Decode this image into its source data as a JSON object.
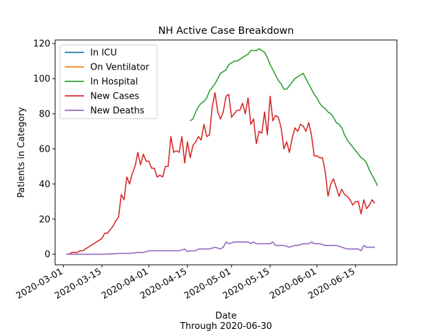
{
  "chart_data": {
    "type": "line",
    "title": "NH Active Case Breakdown",
    "xlabel": "Date",
    "xlabel_sub": "Through 2020-06-30",
    "ylabel": "Patients in Category",
    "xlim": [
      "2020-02-27",
      "2020-06-30"
    ],
    "ylim": [
      -6,
      122
    ],
    "y_ticks": [
      0,
      20,
      40,
      60,
      80,
      100,
      120
    ],
    "x_ticks": [
      "2020-03-01",
      "2020-03-15",
      "2020-04-01",
      "2020-04-15",
      "2020-05-01",
      "2020-05-15",
      "2020-06-01",
      "2020-06-15"
    ],
    "grid": false,
    "legend_position": "upper-left",
    "series": [
      {
        "name": "In ICU",
        "color": "#1f77b4",
        "points": []
      },
      {
        "name": "On Ventilator",
        "color": "#ff7f0e",
        "points": []
      },
      {
        "name": "In Hospital",
        "color": "#2ca02c",
        "points": [
          [
            "2020-04-16",
            76
          ],
          [
            "2020-04-17",
            77
          ],
          [
            "2020-04-18",
            81
          ],
          [
            "2020-04-19",
            84
          ],
          [
            "2020-04-20",
            86
          ],
          [
            "2020-04-21",
            87
          ],
          [
            "2020-04-22",
            89
          ],
          [
            "2020-04-23",
            93
          ],
          [
            "2020-04-24",
            95
          ],
          [
            "2020-04-25",
            97
          ],
          [
            "2020-04-26",
            100
          ],
          [
            "2020-04-27",
            103
          ],
          [
            "2020-04-28",
            104
          ],
          [
            "2020-04-29",
            105
          ],
          [
            "2020-04-30",
            108
          ],
          [
            "2020-05-01",
            109
          ],
          [
            "2020-05-02",
            110
          ],
          [
            "2020-05-03",
            110
          ],
          [
            "2020-05-04",
            111
          ],
          [
            "2020-05-05",
            112
          ],
          [
            "2020-05-06",
            113
          ],
          [
            "2020-05-07",
            114
          ],
          [
            "2020-05-08",
            116
          ],
          [
            "2020-05-09",
            116
          ],
          [
            "2020-05-10",
            116
          ],
          [
            "2020-05-11",
            117
          ],
          [
            "2020-05-12",
            116
          ],
          [
            "2020-05-13",
            115
          ],
          [
            "2020-05-14",
            112
          ],
          [
            "2020-05-15",
            108
          ],
          [
            "2020-05-16",
            105
          ],
          [
            "2020-05-17",
            102
          ],
          [
            "2020-05-18",
            99
          ],
          [
            "2020-05-19",
            97
          ],
          [
            "2020-05-20",
            94
          ],
          [
            "2020-05-21",
            94
          ],
          [
            "2020-05-22",
            96
          ],
          [
            "2020-05-23",
            98
          ],
          [
            "2020-05-24",
            100
          ],
          [
            "2020-05-25",
            101
          ],
          [
            "2020-05-26",
            102
          ],
          [
            "2020-05-27",
            103
          ],
          [
            "2020-05-28",
            100
          ],
          [
            "2020-05-29",
            97
          ],
          [
            "2020-05-30",
            94
          ],
          [
            "2020-05-31",
            91
          ],
          [
            "2020-06-01",
            89
          ],
          [
            "2020-06-02",
            86
          ],
          [
            "2020-06-03",
            84
          ],
          [
            "2020-06-04",
            83
          ],
          [
            "2020-06-05",
            81
          ],
          [
            "2020-06-06",
            80
          ],
          [
            "2020-06-07",
            78
          ],
          [
            "2020-06-08",
            75
          ],
          [
            "2020-06-09",
            74
          ],
          [
            "2020-06-10",
            72
          ],
          [
            "2020-06-11",
            68
          ],
          [
            "2020-06-12",
            65
          ],
          [
            "2020-06-13",
            63
          ],
          [
            "2020-06-14",
            61
          ],
          [
            "2020-06-15",
            59
          ],
          [
            "2020-06-16",
            57
          ],
          [
            "2020-06-17",
            55
          ],
          [
            "2020-06-18",
            54
          ],
          [
            "2020-06-19",
            52
          ],
          [
            "2020-06-20",
            48
          ],
          [
            "2020-06-21",
            45
          ],
          [
            "2020-06-22",
            42
          ],
          [
            "2020-06-23",
            39
          ]
        ]
      },
      {
        "name": "New Cases",
        "color": "#d62728",
        "points": [
          [
            "2020-03-02",
            0
          ],
          [
            "2020-03-03",
            0
          ],
          [
            "2020-03-04",
            1
          ],
          [
            "2020-03-05",
            1
          ],
          [
            "2020-03-06",
            1
          ],
          [
            "2020-03-07",
            2
          ],
          [
            "2020-03-08",
            2
          ],
          [
            "2020-03-09",
            3
          ],
          [
            "2020-03-10",
            4
          ],
          [
            "2020-03-11",
            5
          ],
          [
            "2020-03-12",
            6
          ],
          [
            "2020-03-13",
            7
          ],
          [
            "2020-03-14",
            8
          ],
          [
            "2020-03-15",
            9
          ],
          [
            "2020-03-16",
            12
          ],
          [
            "2020-03-17",
            12
          ],
          [
            "2020-03-18",
            14
          ],
          [
            "2020-03-19",
            16
          ],
          [
            "2020-03-20",
            19
          ],
          [
            "2020-03-21",
            21
          ],
          [
            "2020-03-22",
            34
          ],
          [
            "2020-03-23",
            31
          ],
          [
            "2020-03-24",
            44
          ],
          [
            "2020-03-25",
            40
          ],
          [
            "2020-03-26",
            46
          ],
          [
            "2020-03-27",
            50
          ],
          [
            "2020-03-28",
            58
          ],
          [
            "2020-03-29",
            51
          ],
          [
            "2020-03-30",
            57
          ],
          [
            "2020-03-31",
            53
          ],
          [
            "2020-04-01",
            53
          ],
          [
            "2020-04-02",
            49
          ],
          [
            "2020-04-03",
            49
          ],
          [
            "2020-04-04",
            44
          ],
          [
            "2020-04-05",
            45
          ],
          [
            "2020-04-06",
            44
          ],
          [
            "2020-04-07",
            50
          ],
          [
            "2020-04-08",
            50
          ],
          [
            "2020-04-09",
            67
          ],
          [
            "2020-04-10",
            58
          ],
          [
            "2020-04-11",
            59
          ],
          [
            "2020-04-12",
            58
          ],
          [
            "2020-04-13",
            67
          ],
          [
            "2020-04-14",
            52
          ],
          [
            "2020-04-15",
            64
          ],
          [
            "2020-04-16",
            55
          ],
          [
            "2020-04-17",
            62
          ],
          [
            "2020-04-18",
            64
          ],
          [
            "2020-04-19",
            67
          ],
          [
            "2020-04-20",
            65
          ],
          [
            "2020-04-21",
            74
          ],
          [
            "2020-04-22",
            67
          ],
          [
            "2020-04-23",
            68
          ],
          [
            "2020-04-24",
            84
          ],
          [
            "2020-04-25",
            92
          ],
          [
            "2020-04-26",
            81
          ],
          [
            "2020-04-27",
            77
          ],
          [
            "2020-04-28",
            81
          ],
          [
            "2020-04-29",
            90
          ],
          [
            "2020-04-30",
            91
          ],
          [
            "2020-05-01",
            78
          ],
          [
            "2020-05-02",
            80
          ],
          [
            "2020-05-03",
            82
          ],
          [
            "2020-05-04",
            82
          ],
          [
            "2020-05-05",
            86
          ],
          [
            "2020-05-06",
            80
          ],
          [
            "2020-05-07",
            89
          ],
          [
            "2020-05-08",
            74
          ],
          [
            "2020-05-09",
            77
          ],
          [
            "2020-05-10",
            63
          ],
          [
            "2020-05-11",
            70
          ],
          [
            "2020-05-12",
            69
          ],
          [
            "2020-05-13",
            81
          ],
          [
            "2020-05-14",
            68
          ],
          [
            "2020-05-15",
            90
          ],
          [
            "2020-05-16",
            76
          ],
          [
            "2020-05-17",
            79
          ],
          [
            "2020-05-18",
            78
          ],
          [
            "2020-05-19",
            72
          ],
          [
            "2020-05-20",
            60
          ],
          [
            "2020-05-21",
            64
          ],
          [
            "2020-05-22",
            58
          ],
          [
            "2020-05-23",
            66
          ],
          [
            "2020-05-24",
            72
          ],
          [
            "2020-05-25",
            70
          ],
          [
            "2020-05-26",
            74
          ],
          [
            "2020-05-27",
            73
          ],
          [
            "2020-05-28",
            70
          ],
          [
            "2020-05-29",
            75
          ],
          [
            "2020-05-30",
            68
          ],
          [
            "2020-05-31",
            56
          ],
          [
            "2020-06-01",
            56
          ],
          [
            "2020-06-02",
            55
          ],
          [
            "2020-06-03",
            55
          ],
          [
            "2020-06-04",
            47
          ],
          [
            "2020-06-05",
            33
          ],
          [
            "2020-06-06",
            40
          ],
          [
            "2020-06-07",
            43
          ],
          [
            "2020-06-08",
            38
          ],
          [
            "2020-06-09",
            33
          ],
          [
            "2020-06-10",
            37
          ],
          [
            "2020-06-11",
            34
          ],
          [
            "2020-06-12",
            33
          ],
          [
            "2020-06-13",
            31
          ],
          [
            "2020-06-14",
            28
          ],
          [
            "2020-06-15",
            30
          ],
          [
            "2020-06-16",
            30
          ],
          [
            "2020-06-17",
            23
          ],
          [
            "2020-06-18",
            31
          ],
          [
            "2020-06-19",
            26
          ],
          [
            "2020-06-20",
            28
          ],
          [
            "2020-06-21",
            31
          ],
          [
            "2020-06-22",
            29
          ]
        ]
      },
      {
        "name": "New Deaths",
        "color": "#9467bd",
        "points": [
          [
            "2020-03-02",
            0
          ],
          [
            "2020-03-08",
            0
          ],
          [
            "2020-03-15",
            0
          ],
          [
            "2020-03-22",
            0.5
          ],
          [
            "2020-03-25",
            0.5
          ],
          [
            "2020-03-28",
            1
          ],
          [
            "2020-03-30",
            1
          ],
          [
            "2020-04-01",
            2
          ],
          [
            "2020-04-03",
            2
          ],
          [
            "2020-04-06",
            2
          ],
          [
            "2020-04-09",
            2
          ],
          [
            "2020-04-12",
            2
          ],
          [
            "2020-04-14",
            3
          ],
          [
            "2020-04-15",
            1.5
          ],
          [
            "2020-04-16",
            2
          ],
          [
            "2020-04-18",
            2
          ],
          [
            "2020-04-19",
            3
          ],
          [
            "2020-04-20",
            3
          ],
          [
            "2020-04-23",
            3
          ],
          [
            "2020-04-25",
            4
          ],
          [
            "2020-04-27",
            3
          ],
          [
            "2020-04-28",
            4
          ],
          [
            "2020-04-29",
            7
          ],
          [
            "2020-04-30",
            6
          ],
          [
            "2020-05-02",
            7
          ],
          [
            "2020-05-05",
            7
          ],
          [
            "2020-05-07",
            7
          ],
          [
            "2020-05-08",
            6
          ],
          [
            "2020-05-09",
            7
          ],
          [
            "2020-05-10",
            6
          ],
          [
            "2020-05-12",
            6
          ],
          [
            "2020-05-15",
            6
          ],
          [
            "2020-05-16",
            7
          ],
          [
            "2020-05-17",
            5
          ],
          [
            "2020-05-18",
            5
          ],
          [
            "2020-05-20",
            5
          ],
          [
            "2020-05-22",
            4
          ],
          [
            "2020-05-24",
            5
          ],
          [
            "2020-05-25",
            5
          ],
          [
            "2020-05-27",
            6
          ],
          [
            "2020-05-28",
            6
          ],
          [
            "2020-05-29",
            6
          ],
          [
            "2020-05-30",
            7
          ],
          [
            "2020-05-31",
            6
          ],
          [
            "2020-06-02",
            6
          ],
          [
            "2020-06-04",
            5
          ],
          [
            "2020-06-06",
            5
          ],
          [
            "2020-06-08",
            5
          ],
          [
            "2020-06-10",
            4
          ],
          [
            "2020-06-12",
            3
          ],
          [
            "2020-06-14",
            3
          ],
          [
            "2020-06-16",
            3
          ],
          [
            "2020-06-17",
            2
          ],
          [
            "2020-06-18",
            5
          ],
          [
            "2020-06-19",
            4
          ],
          [
            "2020-06-21",
            4
          ],
          [
            "2020-06-22",
            4
          ]
        ]
      }
    ]
  }
}
